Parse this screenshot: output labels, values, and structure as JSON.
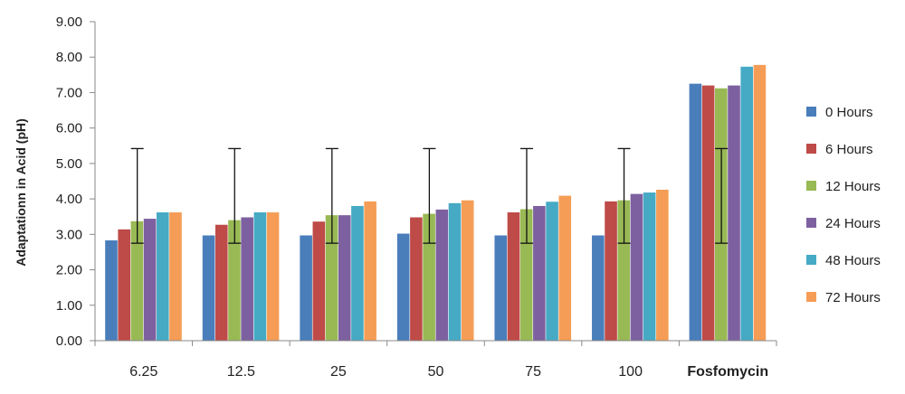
{
  "chart_data": {
    "type": "bar",
    "ylabel": "Adaptationn in Acid (pH)",
    "xlabel": "",
    "ylim": [
      0,
      9
    ],
    "yticks": [
      "0.00",
      "1.00",
      "2.00",
      "3.00",
      "4.00",
      "5.00",
      "6.00",
      "7.00",
      "8.00",
      "9.00"
    ],
    "ytick_values": [
      0,
      1,
      2,
      3,
      4,
      5,
      6,
      7,
      8,
      9
    ],
    "categories": [
      "6.25",
      "12.5",
      "25",
      "50",
      "75",
      "100",
      "Fosfomycin"
    ],
    "last_category_bold": true,
    "legend_position": "right",
    "series": [
      {
        "name": "0 Hours",
        "color": "#4a7ebb",
        "values": [
          2.83,
          2.97,
          2.97,
          3.02,
          2.97,
          2.97,
          7.25
        ]
      },
      {
        "name": "6 Hours",
        "color": "#be4b48",
        "values": [
          3.14,
          3.27,
          3.36,
          3.48,
          3.62,
          3.93,
          7.2
        ]
      },
      {
        "name": "12 Hours",
        "color": "#98b954",
        "values": [
          3.37,
          3.4,
          3.54,
          3.58,
          3.71,
          3.96,
          7.12
        ]
      },
      {
        "name": "24 Hours",
        "color": "#7d60a0",
        "values": [
          3.44,
          3.48,
          3.54,
          3.7,
          3.8,
          4.14,
          7.2
        ]
      },
      {
        "name": "48 Hours",
        "color": "#46aac5",
        "values": [
          3.62,
          3.62,
          3.8,
          3.88,
          3.92,
          4.18,
          7.73
        ]
      },
      {
        "name": "72 Hours",
        "color": "#f59d56",
        "values": [
          3.62,
          3.62,
          3.93,
          3.96,
          4.09,
          4.26,
          7.78
        ]
      }
    ],
    "error_bars": {
      "series_index": 2,
      "lower": 2.75,
      "upper": 5.42
    }
  }
}
